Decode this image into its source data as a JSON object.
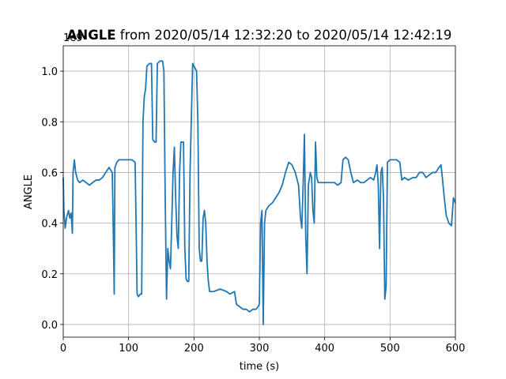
{
  "chart_data": {
    "type": "line",
    "title_bold": "ANGLE",
    "title": "from 2020/05/14 12:32:20 to 2020/05/14 12:42:19",
    "xlabel": "time (s)",
    "ylabel": "ANGLE",
    "y_offset_label": "1e9",
    "color": "#1f77b4",
    "grid": true,
    "xlim": [
      0,
      600
    ],
    "ylim": [
      -0.05,
      1.1
    ],
    "xticks": [
      0,
      100,
      200,
      300,
      400,
      500,
      600
    ],
    "yticks": [
      {
        "value": 0,
        "label": "0.0"
      },
      0.2,
      0.4,
      0.6,
      0.8,
      {
        "value": 1,
        "label": "1.0"
      }
    ],
    "x": [
      0,
      1,
      3,
      5,
      8,
      10,
      12,
      14,
      15,
      17,
      19,
      22,
      25,
      30,
      35,
      40,
      45,
      50,
      55,
      60,
      65,
      70,
      75,
      77,
      78,
      79,
      82,
      85,
      90,
      95,
      100,
      105,
      110,
      112,
      113,
      115,
      118,
      120,
      122,
      124,
      126,
      128,
      132,
      135,
      137,
      140,
      142,
      144,
      148,
      152,
      154,
      156,
      158,
      160,
      162,
      164,
      166,
      168,
      170,
      172,
      174,
      176,
      178,
      180,
      184,
      186,
      188,
      190,
      192,
      194,
      198,
      200,
      204,
      206,
      208,
      210,
      212,
      214,
      216,
      218,
      220,
      222,
      224,
      230,
      240,
      250,
      255,
      262,
      265,
      270,
      275,
      280,
      285,
      290,
      295,
      298,
      300,
      302,
      304,
      306,
      308,
      310,
      315,
      320,
      325,
      330,
      335,
      340,
      345,
      350,
      355,
      360,
      363,
      365,
      367,
      369,
      371,
      373,
      375,
      378,
      380,
      382,
      384,
      386,
      388,
      390,
      395,
      400,
      405,
      410,
      415,
      420,
      425,
      428,
      432,
      436,
      440,
      444,
      450,
      455,
      460,
      465,
      470,
      475,
      478,
      480,
      482,
      484,
      486,
      488,
      490,
      492,
      494,
      496,
      500,
      505,
      510,
      515,
      518,
      522,
      528,
      535,
      540,
      545,
      550,
      555,
      560,
      565,
      570,
      575,
      578,
      580,
      583,
      586,
      590,
      594,
      597,
      600
    ],
    "values": [
      0.58,
      0.45,
      0.38,
      0.42,
      0.45,
      0.42,
      0.44,
      0.36,
      0.6,
      0.65,
      0.6,
      0.57,
      0.56,
      0.57,
      0.56,
      0.55,
      0.56,
      0.57,
      0.57,
      0.58,
      0.6,
      0.62,
      0.6,
      0.3,
      0.12,
      0.62,
      0.64,
      0.65,
      0.65,
      0.65,
      0.65,
      0.65,
      0.64,
      0.3,
      0.12,
      0.11,
      0.12,
      0.12,
      0.8,
      0.9,
      0.93,
      1.02,
      1.03,
      1.03,
      0.73,
      0.72,
      0.72,
      1.03,
      1.04,
      1.04,
      1.0,
      0.5,
      0.1,
      0.3,
      0.25,
      0.22,
      0.4,
      0.6,
      0.7,
      0.5,
      0.35,
      0.3,
      0.6,
      0.72,
      0.72,
      0.3,
      0.18,
      0.17,
      0.17,
      0.6,
      1.03,
      1.02,
      1.0,
      0.8,
      0.3,
      0.25,
      0.25,
      0.42,
      0.45,
      0.4,
      0.25,
      0.17,
      0.13,
      0.13,
      0.14,
      0.13,
      0.12,
      0.13,
      0.08,
      0.07,
      0.06,
      0.06,
      0.05,
      0.06,
      0.06,
      0.07,
      0.08,
      0.4,
      0.45,
      0.0,
      0.4,
      0.45,
      0.47,
      0.48,
      0.5,
      0.52,
      0.55,
      0.6,
      0.64,
      0.63,
      0.6,
      0.55,
      0.42,
      0.38,
      0.55,
      0.75,
      0.35,
      0.2,
      0.55,
      0.6,
      0.58,
      0.45,
      0.4,
      0.72,
      0.58,
      0.56,
      0.56,
      0.56,
      0.56,
      0.56,
      0.56,
      0.55,
      0.56,
      0.65,
      0.66,
      0.65,
      0.6,
      0.56,
      0.57,
      0.56,
      0.56,
      0.57,
      0.58,
      0.57,
      0.6,
      0.63,
      0.55,
      0.3,
      0.6,
      0.62,
      0.5,
      0.1,
      0.15,
      0.64,
      0.65,
      0.65,
      0.65,
      0.64,
      0.57,
      0.58,
      0.57,
      0.58,
      0.58,
      0.6,
      0.6,
      0.58,
      0.59,
      0.6,
      0.6,
      0.62,
      0.63,
      0.58,
      0.5,
      0.43,
      0.4,
      0.39,
      0.5,
      0.48
    ]
  }
}
